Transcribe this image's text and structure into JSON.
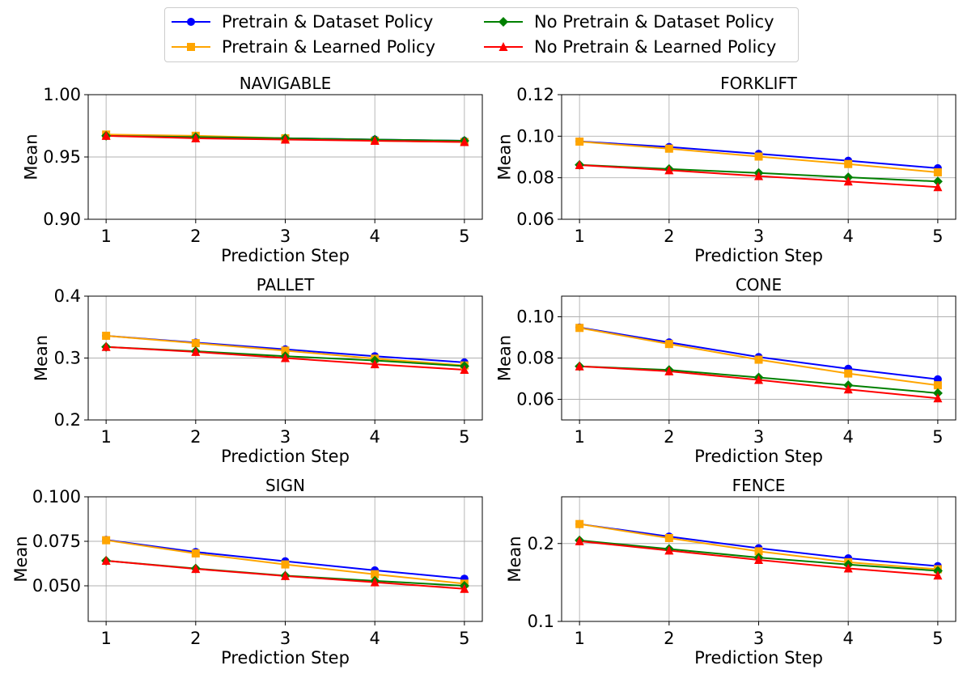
{
  "legend": {
    "items": [
      {
        "label": "Pretrain & Dataset Policy",
        "color": "#0000ff",
        "marker": "circle"
      },
      {
        "label": "No Pretrain & Dataset Policy",
        "color": "#008000",
        "marker": "diamond"
      },
      {
        "label": "Pretrain & Learned Policy",
        "color": "#ffa500",
        "marker": "square"
      },
      {
        "label": "No Pretrain & Learned Policy",
        "color": "#ff0000",
        "marker": "triangle"
      }
    ]
  },
  "chart_data": [
    {
      "type": "line",
      "title": "NAVIGABLE",
      "xlabel": "Prediction Step",
      "ylabel": "Mean",
      "x": [
        1,
        2,
        3,
        4,
        5
      ],
      "xticks": [
        "1",
        "2",
        "3",
        "4",
        "5"
      ],
      "ylim": [
        0.9,
        1.0
      ],
      "yticks": [
        "0.90",
        "0.95",
        "1.00"
      ],
      "grid": true,
      "series": [
        {
          "name": "Pretrain & Dataset Policy",
          "values": [
            0.967,
            0.966,
            0.965,
            0.964,
            0.963
          ]
        },
        {
          "name": "Pretrain & Learned Policy",
          "values": [
            0.968,
            0.967,
            0.965,
            0.963,
            0.962
          ]
        },
        {
          "name": "No Pretrain & Dataset Policy",
          "values": [
            0.967,
            0.966,
            0.965,
            0.964,
            0.963
          ]
        },
        {
          "name": "No Pretrain & Learned Policy",
          "values": [
            0.967,
            0.965,
            0.964,
            0.963,
            0.962
          ]
        }
      ]
    },
    {
      "type": "line",
      "title": "FORKLIFT",
      "xlabel": "Prediction Step",
      "ylabel": "Mean",
      "x": [
        1,
        2,
        3,
        4,
        5
      ],
      "xticks": [
        "1",
        "2",
        "3",
        "4",
        "5"
      ],
      "ylim": [
        0.06,
        0.12
      ],
      "yticks": [
        "0.06",
        "0.08",
        "0.10",
        "0.12"
      ],
      "grid": true,
      "series": [
        {
          "name": "Pretrain & Dataset Policy",
          "values": [
            0.0975,
            0.0948,
            0.0915,
            0.0882,
            0.0846
          ]
        },
        {
          "name": "Pretrain & Learned Policy",
          "values": [
            0.0974,
            0.094,
            0.0902,
            0.0866,
            0.0826
          ]
        },
        {
          "name": "No Pretrain & Dataset Policy",
          "values": [
            0.0862,
            0.0842,
            0.0823,
            0.0802,
            0.0782
          ]
        },
        {
          "name": "No Pretrain & Learned Policy",
          "values": [
            0.0861,
            0.0836,
            0.0808,
            0.0782,
            0.0755
          ]
        }
      ]
    },
    {
      "type": "line",
      "title": "PALLET",
      "xlabel": "Prediction Step",
      "ylabel": "Mean",
      "x": [
        1,
        2,
        3,
        4,
        5
      ],
      "xticks": [
        "1",
        "2",
        "3",
        "4",
        "5"
      ],
      "ylim": [
        0.2,
        0.4
      ],
      "yticks": [
        "0.2",
        "0.3",
        "0.4"
      ],
      "grid": true,
      "series": [
        {
          "name": "Pretrain & Dataset Policy",
          "values": [
            0.336,
            0.325,
            0.314,
            0.303,
            0.293
          ]
        },
        {
          "name": "Pretrain & Learned Policy",
          "values": [
            0.336,
            0.324,
            0.312,
            0.299,
            0.288
          ]
        },
        {
          "name": "No Pretrain & Dataset Policy",
          "values": [
            0.318,
            0.311,
            0.303,
            0.296,
            0.287
          ]
        },
        {
          "name": "No Pretrain & Learned Policy",
          "values": [
            0.318,
            0.31,
            0.3,
            0.29,
            0.281
          ]
        }
      ]
    },
    {
      "type": "line",
      "title": "CONE",
      "xlabel": "Prediction Step",
      "ylabel": "Mean",
      "x": [
        1,
        2,
        3,
        4,
        5
      ],
      "xticks": [
        "1",
        "2",
        "3",
        "4",
        "5"
      ],
      "ylim": [
        0.05,
        0.11
      ],
      "yticks": [
        "0.06",
        "0.08",
        "0.10"
      ],
      "grid": true,
      "series": [
        {
          "name": "Pretrain & Dataset Policy",
          "values": [
            0.0948,
            0.0876,
            0.0805,
            0.0748,
            0.0697
          ]
        },
        {
          "name": "Pretrain & Learned Policy",
          "values": [
            0.0946,
            0.0868,
            0.0792,
            0.0725,
            0.0668
          ]
        },
        {
          "name": "No Pretrain & Dataset Policy",
          "values": [
            0.076,
            0.0742,
            0.0706,
            0.0668,
            0.063
          ]
        },
        {
          "name": "No Pretrain & Learned Policy",
          "values": [
            0.076,
            0.0736,
            0.0694,
            0.0648,
            0.0605
          ]
        }
      ]
    },
    {
      "type": "line",
      "title": "SIGN",
      "xlabel": "Prediction Step",
      "ylabel": "Mean",
      "x": [
        1,
        2,
        3,
        4,
        5
      ],
      "xticks": [
        "1",
        "2",
        "3",
        "4",
        "5"
      ],
      "ylim": [
        0.03,
        0.1
      ],
      "yticks": [
        "0.050",
        "0.075",
        "0.100"
      ],
      "grid": true,
      "series": [
        {
          "name": "Pretrain & Dataset Policy",
          "values": [
            0.0758,
            0.069,
            0.0638,
            0.0587,
            0.054
          ]
        },
        {
          "name": "Pretrain & Learned Policy",
          "values": [
            0.0756,
            0.0682,
            0.062,
            0.0565,
            0.0512
          ]
        },
        {
          "name": "No Pretrain & Dataset Policy",
          "values": [
            0.0641,
            0.0597,
            0.0557,
            0.0528,
            0.05
          ]
        },
        {
          "name": "No Pretrain & Learned Policy",
          "values": [
            0.0641,
            0.0595,
            0.0555,
            0.052,
            0.0483
          ]
        }
      ]
    },
    {
      "type": "line",
      "title": "FENCE",
      "xlabel": "Prediction Step",
      "ylabel": "Mean",
      "x": [
        1,
        2,
        3,
        4,
        5
      ],
      "xticks": [
        "1",
        "2",
        "3",
        "4",
        "5"
      ],
      "ylim": [
        0.1,
        0.26
      ],
      "yticks": [
        "0.1",
        "0.2"
      ],
      "grid": true,
      "series": [
        {
          "name": "Pretrain & Dataset Policy",
          "values": [
            0.225,
            0.209,
            0.194,
            0.181,
            0.171
          ]
        },
        {
          "name": "Pretrain & Learned Policy",
          "values": [
            0.225,
            0.207,
            0.19,
            0.176,
            0.167
          ]
        },
        {
          "name": "No Pretrain & Dataset Policy",
          "values": [
            0.204,
            0.193,
            0.182,
            0.173,
            0.165
          ]
        },
        {
          "name": "No Pretrain & Learned Policy",
          "values": [
            0.203,
            0.191,
            0.179,
            0.168,
            0.159
          ]
        }
      ]
    }
  ]
}
